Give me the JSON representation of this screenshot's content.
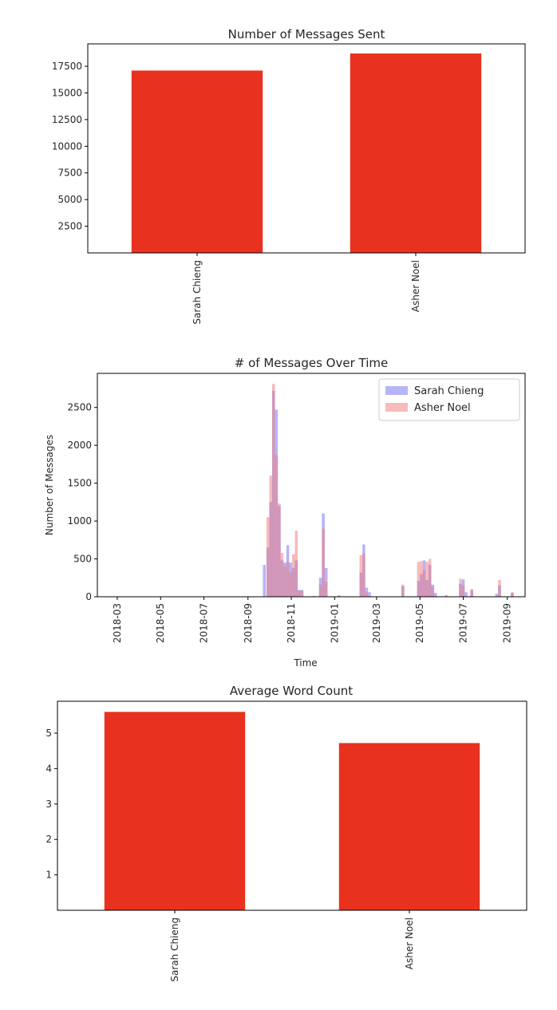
{
  "chart_data": [
    {
      "type": "bar",
      "title": "Number of Messages Sent",
      "categories": [
        "Sarah Chieng",
        "Asher Noel"
      ],
      "values": [
        17100,
        18700
      ],
      "ylim": [
        0,
        19600
      ],
      "yticks": [
        2500,
        5000,
        7500,
        10000,
        12500,
        15000,
        17500
      ],
      "color": "#e8321f",
      "xlabel": "",
      "ylabel": ""
    },
    {
      "type": "bar",
      "title": "# of Messages Over Time",
      "xlabel": "Time",
      "ylabel": "Number of Messages",
      "ylim": [
        0,
        2950
      ],
      "yticks": [
        0,
        500,
        1000,
        1500,
        2000,
        2500
      ],
      "xticks": [
        "2018-03",
        "2018-05",
        "2018-07",
        "2018-09",
        "2018-11",
        "2019-01",
        "2019-03",
        "2019-05",
        "2019-07",
        "2019-09"
      ],
      "legend": "top-right",
      "series": [
        {
          "name": "Sarah Chieng",
          "color": "#6b6bf5",
          "points": [
            [
              "2018-09-22",
              420
            ],
            [
              "2018-09-27",
              650
            ],
            [
              "2018-10-01",
              1250
            ],
            [
              "2018-10-05",
              2720
            ],
            [
              "2018-10-09",
              2470
            ],
            [
              "2018-10-13",
              1200
            ],
            [
              "2018-10-17",
              480
            ],
            [
              "2018-10-21",
              450
            ],
            [
              "2018-10-25",
              680
            ],
            [
              "2018-10-29",
              450
            ],
            [
              "2018-11-02",
              380
            ],
            [
              "2018-11-06",
              480
            ],
            [
              "2018-11-10",
              90
            ],
            [
              "2018-11-14",
              90
            ],
            [
              "2018-12-01",
              10
            ],
            [
              "2018-12-10",
              250
            ],
            [
              "2018-12-14",
              1100
            ],
            [
              "2018-12-18",
              380
            ],
            [
              "2019-01-05",
              20
            ],
            [
              "2019-02-05",
              320
            ],
            [
              "2019-02-09",
              690
            ],
            [
              "2019-02-13",
              120
            ],
            [
              "2019-02-17",
              60
            ],
            [
              "2019-04-05",
              140
            ],
            [
              "2019-04-27",
              210
            ],
            [
              "2019-05-01",
              300
            ],
            [
              "2019-05-05",
              480
            ],
            [
              "2019-05-09",
              220
            ],
            [
              "2019-05-13",
              420
            ],
            [
              "2019-05-17",
              160
            ],
            [
              "2019-05-21",
              50
            ],
            [
              "2019-06-05",
              20
            ],
            [
              "2019-06-25",
              170
            ],
            [
              "2019-06-29",
              230
            ],
            [
              "2019-07-03",
              60
            ],
            [
              "2019-07-11",
              90
            ],
            [
              "2019-08-15",
              40
            ],
            [
              "2019-08-19",
              150
            ],
            [
              "2019-09-06",
              50
            ]
          ]
        },
        {
          "name": "Asher Noel",
          "color": "#f07878",
          "points": [
            [
              "2018-09-27",
              1050
            ],
            [
              "2018-10-01",
              1600
            ],
            [
              "2018-10-05",
              2810
            ],
            [
              "2018-10-09",
              1870
            ],
            [
              "2018-10-13",
              1230
            ],
            [
              "2018-10-17",
              580
            ],
            [
              "2018-10-21",
              400
            ],
            [
              "2018-10-25",
              460
            ],
            [
              "2018-10-29",
              320
            ],
            [
              "2018-11-02",
              560
            ],
            [
              "2018-11-06",
              870
            ],
            [
              "2018-11-10",
              80
            ],
            [
              "2018-11-14",
              80
            ],
            [
              "2018-12-10",
              160
            ],
            [
              "2018-12-14",
              900
            ],
            [
              "2018-12-18",
              200
            ],
            [
              "2019-02-05",
              550
            ],
            [
              "2019-02-09",
              570
            ],
            [
              "2019-02-13",
              60
            ],
            [
              "2019-04-05",
              160
            ],
            [
              "2019-04-27",
              460
            ],
            [
              "2019-05-01",
              470
            ],
            [
              "2019-05-05",
              350
            ],
            [
              "2019-05-09",
              460
            ],
            [
              "2019-05-13",
              500
            ],
            [
              "2019-05-17",
              130
            ],
            [
              "2019-06-25",
              240
            ],
            [
              "2019-06-29",
              150
            ],
            [
              "2019-07-11",
              100
            ],
            [
              "2019-08-19",
              220
            ],
            [
              "2019-09-06",
              60
            ]
          ]
        }
      ]
    },
    {
      "type": "bar",
      "title": "Average Word Count",
      "categories": [
        "Sarah Chieng",
        "Asher Noel"
      ],
      "values": [
        5.6,
        4.72
      ],
      "ylim": [
        0,
        5.9
      ],
      "yticks": [
        1,
        2,
        3,
        4,
        5
      ],
      "color": "#e8321f",
      "xlabel": "",
      "ylabel": ""
    }
  ]
}
